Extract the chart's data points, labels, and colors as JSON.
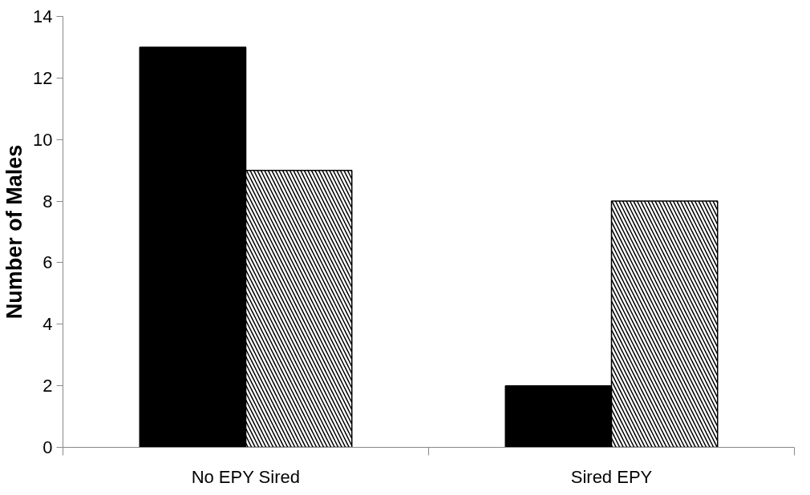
{
  "chart_data": {
    "type": "bar",
    "ylabel": "Number of Males",
    "categories": [
      "No EPY Sired",
      "Sired EPY"
    ],
    "series": [
      {
        "color": "#000000",
        "values": [
          13,
          2
        ]
      },
      {
        "color": "#ffffff",
        "values": [
          9,
          8
        ]
      }
    ],
    "ylim": [
      0,
      14
    ],
    "yticks": [
      0,
      2,
      4,
      6,
      8,
      10,
      12,
      14
    ],
    "grid": false
  }
}
